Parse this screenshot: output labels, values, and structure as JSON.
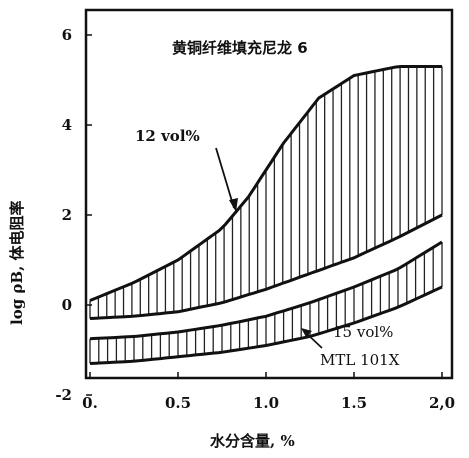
{
  "chart_data": {
    "type": "area",
    "title": "黄铜纤维填充尼龙 6",
    "xlabel": "水分含量, %",
    "ylabel": "log ρB, 体电阻率",
    "xlim": [
      0,
      2.0
    ],
    "ylim": [
      -2,
      6.5
    ],
    "x_ticks": [
      {
        "value": 0,
        "label": "0."
      },
      {
        "value": 0.5,
        "label": "0.5"
      },
      {
        "value": 1.0,
        "label": "1.0"
      },
      {
        "value": 1.5,
        "label": "1.5"
      },
      {
        "value": 2.0,
        "label": "2,0"
      }
    ],
    "y_ticks": [
      {
        "value": -2,
        "label": "-2"
      },
      {
        "value": 0,
        "label": "0"
      },
      {
        "value": 2,
        "label": "2"
      },
      {
        "value": 4,
        "label": "4"
      },
      {
        "value": 6,
        "label": "6"
      }
    ],
    "grid": false,
    "series": [
      {
        "name": "12 vol%",
        "upper": {
          "x": [
            0,
            0.25,
            0.5,
            0.75,
            0.9,
            1.1,
            1.3,
            1.5,
            1.75,
            2.0
          ],
          "y": [
            0.1,
            0.5,
            1.0,
            1.7,
            2.4,
            3.6,
            4.6,
            5.1,
            5.3,
            5.3
          ]
        },
        "lower": {
          "x": [
            0,
            0.25,
            0.5,
            0.75,
            1.0,
            1.25,
            1.5,
            1.75,
            2.0
          ],
          "y": [
            -0.3,
            -0.25,
            -0.15,
            0.05,
            0.35,
            0.7,
            1.05,
            1.5,
            2.0
          ]
        }
      },
      {
        "name": "15 vol%",
        "upper": {
          "x": [
            0,
            0.25,
            0.5,
            0.75,
            1.0,
            1.25,
            1.5,
            1.75,
            2.0
          ],
          "y": [
            -0.75,
            -0.7,
            -0.6,
            -0.45,
            -0.25,
            0.05,
            0.4,
            0.8,
            1.4
          ]
        },
        "lower": {
          "x": [
            0,
            0.25,
            0.5,
            0.75,
            1.0,
            1.25,
            1.5,
            1.75,
            2.0
          ],
          "y": [
            -1.3,
            -1.25,
            -1.15,
            -1.05,
            -0.9,
            -0.7,
            -0.4,
            -0.05,
            0.4
          ]
        }
      }
    ],
    "annotations": [
      {
        "text": "12 vol%"
      },
      {
        "text": "15 vol%"
      },
      {
        "text": "MTL  101X"
      }
    ]
  }
}
